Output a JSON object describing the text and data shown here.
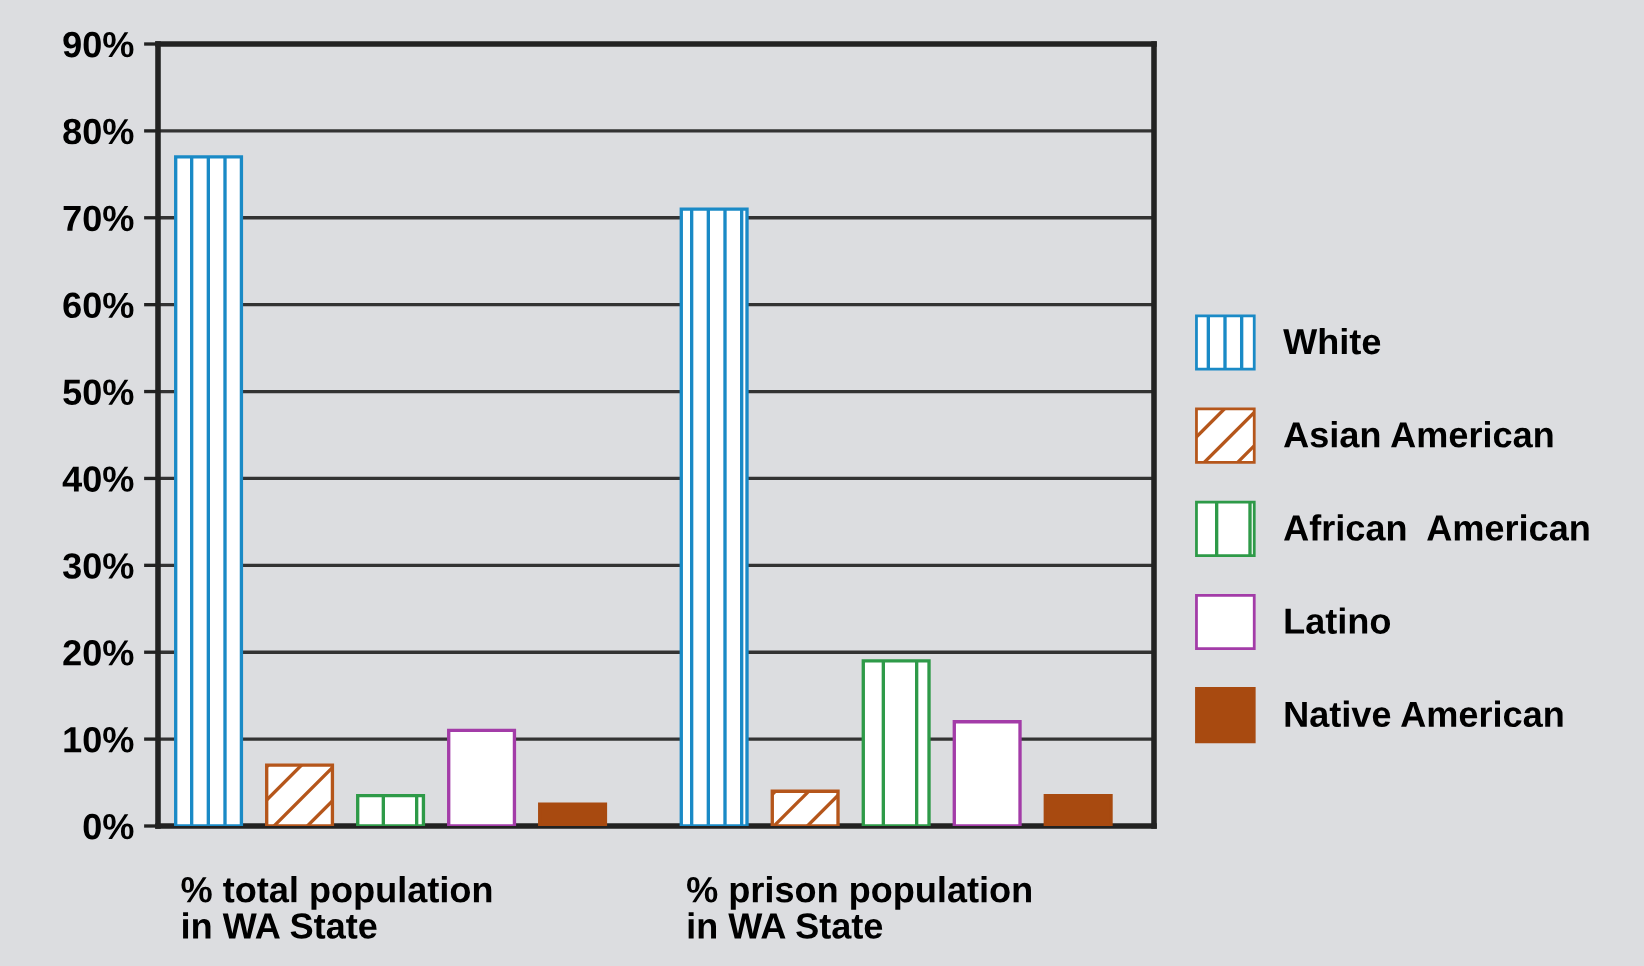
{
  "chart_data": {
    "type": "bar",
    "categories": [
      "% total population\nin WA State",
      "% prison population\nin WA State"
    ],
    "series": [
      {
        "name": "White",
        "color": "#1a8ac6",
        "values": [
          77,
          71
        ]
      },
      {
        "name": "Asian American",
        "color": "#b5561b",
        "values": [
          7,
          4
        ]
      },
      {
        "name": "African  American",
        "color": "#2e9a48",
        "values": [
          3.5,
          19
        ]
      },
      {
        "name": "Latino",
        "color": "#a33ca8",
        "values": [
          11,
          12
        ]
      },
      {
        "name": "Native American",
        "color": "#a84a10",
        "values": [
          2.5,
          3.5
        ]
      }
    ],
    "ylim": [
      0,
      90
    ],
    "yticks": [
      {
        "value": 0,
        "label": "0%"
      },
      {
        "value": 10,
        "label": "10%"
      },
      {
        "value": 20,
        "label": "20%"
      },
      {
        "value": 30,
        "label": "30%"
      },
      {
        "value": 40,
        "label": "40%"
      },
      {
        "value": 50,
        "label": "50%"
      },
      {
        "value": 60,
        "label": "60%"
      },
      {
        "value": 70,
        "label": "70%"
      },
      {
        "value": 80,
        "label": "80%"
      },
      {
        "value": 90,
        "label": "90%"
      }
    ],
    "grid": "y",
    "legend": "right"
  }
}
